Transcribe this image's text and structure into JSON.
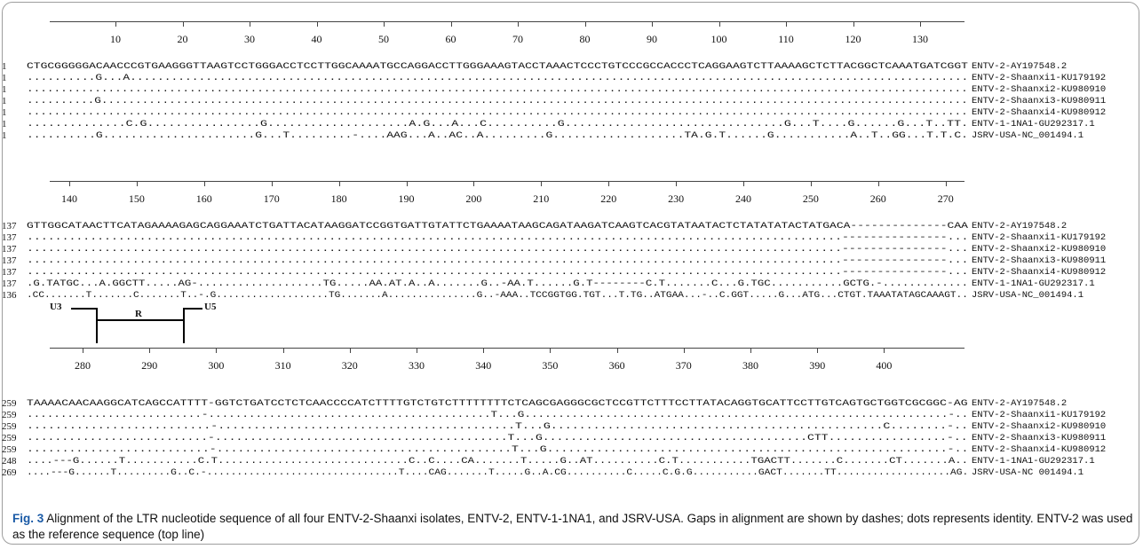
{
  "blocks": [
    {
      "ticks": [
        "10",
        "20",
        "30",
        "40",
        "50",
        "60",
        "70",
        "80",
        "90",
        "100",
        "110",
        "120",
        "130"
      ],
      "rows": [
        {
          "num": "1",
          "seq": "CTGCGGGGGACAACCCGTGAAGGGTTAAGTCCTGGGACCTCCTTGGCAAAATGCCAGGACCTTGGGAAAGTACCTAAACTCCCTGTCCCGCCACCCTCAGGAAGTCTTAAAAGCTCTTACGGCTCAAATGATCGGT",
          "name": "ENTV-2-AY197548.2"
        },
        {
          "num": "1",
          "seq": "..........G...A..........................................................................................................................",
          "name": "ENTV-2-Shaanxi1-KU179192"
        },
        {
          "num": "1",
          "seq": "...........................................................................................................................................",
          "name": "ENTV-2-Shaanxi2-KU980910"
        },
        {
          "num": "1",
          "seq": "..........G................................................................................................................................",
          "name": "ENTV-2-Shaanxi3-KU980911"
        },
        {
          "num": "1",
          "seq": "...........................................................................................................................................",
          "name": "ENTV-2-Shaanxi4-KU980912"
        },
        {
          "num": "1",
          "seq": "..............C.G................G....................A.G...A...C..........G...............................G...T....G......G...T..TT.",
          "name": "ENTV-1-1NA1-GU292317.1"
        },
        {
          "num": "1",
          "seq": "..........G......................G...T.........-....AAG...A..AC..A.........G...................TA.G.T......G...........A..T..GG...T.T.C.",
          "name": "JSRV-USA-NC_001494.1"
        }
      ]
    },
    {
      "ticks": [
        "140",
        "150",
        "160",
        "170",
        "180",
        "190",
        "200",
        "210",
        "220",
        "230",
        "240",
        "250",
        "260",
        "270"
      ],
      "rows": [
        {
          "num": "137",
          "seq": "GTTGGCATAACTTCATAGAAAAGAGCAGGAAATCTGATTACATAAGGATCCGGTGATTGTATTCTGAAAATAAGCAGATAAGATCAAGTCACGTATAATACTCTATATATACTATGACA--------------CAA",
          "name": "ENTV-2-AY197548.2"
        },
        {
          "num": "137",
          "seq": "....................................................................................................................---------------...",
          "name": "ENTV-2-Shaanxi1-KU179192"
        },
        {
          "num": "137",
          "seq": "....................................................................................................................---------------...",
          "name": "ENTV-2-Shaanxi2-KU980910"
        },
        {
          "num": "137",
          "seq": "....................................................................................................................---------------...",
          "name": "ENTV-2-Shaanxi3-KU980911"
        },
        {
          "num": "137",
          "seq": "....................................................................................................................---------------...",
          "name": "ENTV-2-Shaanxi4-KU980912"
        },
        {
          "num": "137",
          "seq": ".G.TATGC...A.GGCTT.....AG-...................TG.....AA.AT.A..A.......G..-AA.T......G.T--------C.T.......C...G.TGC...........GCTG.-.............",
          "name": "ENTV-1-1NA1-GU292317.1"
        },
        {
          "num": "136",
          "seq": ".CC.......T.......C.......T..-.G...................TG.......A...............G..-AAA..TCCGGTGG.TGT...T.TG..ATGAA...-..C.GGT.....G...ATG...CTGT.TAAATATAGCAAAGT..",
          "name": "JSRV-USA-NC_001494.1"
        }
      ],
      "region": {
        "u3": "U3",
        "r": "R",
        "u5": "U5"
      }
    },
    {
      "ticks": [
        "280",
        "290",
        "300",
        "310",
        "320",
        "330",
        "340",
        "350",
        "360",
        "370",
        "380",
        "390",
        "400"
      ],
      "rows": [
        {
          "num": "259",
          "seq": "TAAAACAACAAGGCATCAGCCATTTT-GGTCTGATCCTCTCAACCCCATCTTTTGTCTGTCTTTTTTTTCTCAGCGAGGGCGCTCCGTTCTTTCCTTATACAGGTGCATTCCTTGTCAGTGCTGGTCGCGGC-AG",
          "name": "ENTV-2-AY197548.2"
        },
        {
          "num": "259",
          "seq": "..........................-..........................................T...G...............................................................-..",
          "name": "ENTV-2-Shaanxi1-KU179192"
        },
        {
          "num": "259",
          "seq": "..........................-..........................................T...G...............................................C........-..",
          "name": "ENTV-2-Shaanxi2-KU980910"
        },
        {
          "num": "259",
          "seq": "..........................-..........................................T...G......................................CTT.................-..",
          "name": "ENTV-2-Shaanxi3-KU980911"
        },
        {
          "num": "259",
          "seq": "..........................-..........................................T...G.........................................................-..",
          "name": "ENTV-2-Shaanxi4-KU980912"
        },
        {
          "num": "248",
          "seq": "....---G......T...........C.T.............................C..C....CA.......T.....G..AT..........C.T...........TGACTT.......C.......CT.......A..",
          "name": "ENTV-1-1NA1-GU292317.1"
        },
        {
          "num": "269",
          "seq": "....---G......T.........G..C.-................................T....CAG.......T.....G..A.CG..........C.....C.G.G...........GACT.......TT...................AG.",
          "name": "JSRV-USA-NC 001494.1"
        }
      ]
    }
  ],
  "caption": {
    "label": "Fig. 3",
    "text": " Alignment of the LTR nucleotide sequence of all four ENTV-2-Shaanxi isolates, ENTV-2, ENTV-1-1NA1, and JSRV-USA. Gaps in alignment are shown by dashes; dots represents identity. ENTV-2 was used as the reference sequence (top line)"
  }
}
